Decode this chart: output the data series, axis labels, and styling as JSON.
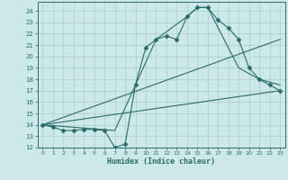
{
  "title": "",
  "xlabel": "Humidex (Indice chaleur)",
  "background_color": "#cde8e8",
  "grid_color": "#aacccc",
  "line_color": "#2a6b6b",
  "xlim": [
    -0.5,
    23.5
  ],
  "ylim": [
    12,
    24.8
  ],
  "xticks": [
    0,
    1,
    2,
    3,
    4,
    5,
    6,
    7,
    8,
    9,
    10,
    11,
    12,
    13,
    14,
    15,
    16,
    17,
    18,
    19,
    20,
    21,
    22,
    23
  ],
  "yticks": [
    12,
    13,
    14,
    15,
    16,
    17,
    18,
    19,
    20,
    21,
    22,
    23,
    24
  ],
  "series": [
    {
      "x": [
        0,
        1,
        2,
        3,
        4,
        5,
        6,
        7,
        8,
        9,
        10,
        11,
        12,
        13,
        14,
        15,
        16,
        17,
        18,
        19,
        20,
        21,
        22,
        23
      ],
      "y": [
        14.0,
        13.8,
        13.5,
        13.5,
        13.6,
        13.6,
        13.5,
        12.0,
        12.3,
        17.5,
        20.8,
        21.5,
        21.8,
        21.5,
        23.5,
        24.3,
        24.3,
        23.2,
        22.5,
        21.5,
        19.0,
        18.0,
        17.5,
        17.0
      ],
      "marker": "D",
      "markersize": 2.5
    },
    {
      "x": [
        0,
        23
      ],
      "y": [
        14.0,
        17.0
      ],
      "marker": null,
      "markersize": 0
    },
    {
      "x": [
        0,
        23
      ],
      "y": [
        14.0,
        21.5
      ],
      "marker": null,
      "markersize": 0
    },
    {
      "x": [
        0,
        7,
        9,
        11,
        14,
        15,
        16,
        19,
        20,
        21,
        23
      ],
      "y": [
        14.0,
        13.5,
        17.5,
        21.5,
        23.5,
        24.3,
        24.3,
        19.0,
        18.5,
        18.0,
        17.5
      ],
      "marker": null,
      "markersize": 0
    }
  ]
}
